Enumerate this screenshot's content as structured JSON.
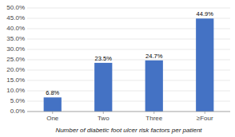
{
  "chart_data": {
    "type": "bar",
    "categories": [
      "One",
      "Two",
      "Three",
      "≥Four"
    ],
    "values": [
      6.8,
      23.5,
      24.7,
      44.9
    ],
    "value_labels": [
      "6.8%",
      "23.5%",
      "24.7%",
      "44.9%"
    ],
    "data_labels": true,
    "color": "#4472C4",
    "xlabel": "Number of diabetic foot ulcer risk factors per patient",
    "ylim": [
      0,
      50
    ],
    "yticks": [
      {
        "value": 0,
        "label": "0.0%"
      },
      {
        "value": 5,
        "label": "5.0%"
      },
      {
        "value": 10,
        "label": "10.0%"
      },
      {
        "value": 15,
        "label": "15.0%"
      },
      {
        "value": 20,
        "label": "20.0%"
      },
      {
        "value": 25,
        "label": "25.0%"
      },
      {
        "value": 30,
        "label": "30.0%"
      },
      {
        "value": 35,
        "label": "35.0%"
      },
      {
        "value": 40,
        "label": "40.0%"
      },
      {
        "value": 45,
        "label": "45.0%"
      },
      {
        "value": 50,
        "label": "50.0%"
      }
    ],
    "grid": true
  }
}
